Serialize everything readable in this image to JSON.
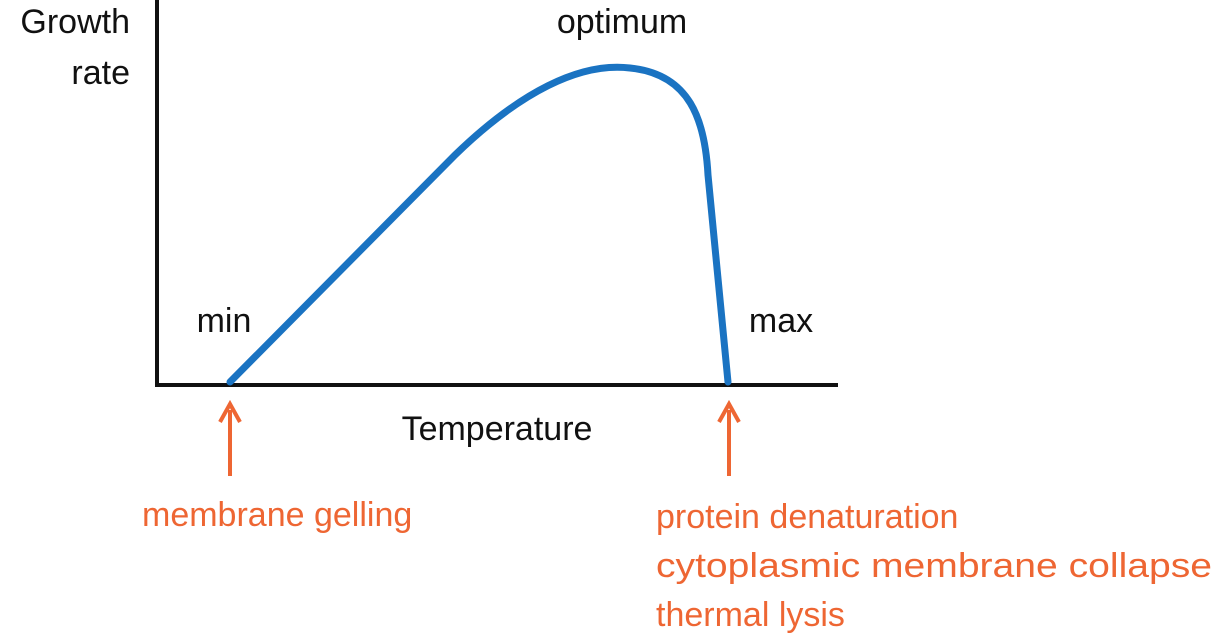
{
  "y_axis_label_line1": "Growth",
  "y_axis_label_line2": "rate",
  "x_axis_label": "Temperature",
  "point_labels": {
    "min": "min",
    "optimum": "optimum",
    "max": "max"
  },
  "min_causes": [
    "membrane gelling"
  ],
  "max_causes": [
    "protein denaturation",
    "cytoplasmic membrane collapse",
    "thermal lysis"
  ],
  "colors": {
    "curve": "#1a73c2",
    "axes": "#111111",
    "annotation": "#ee6633"
  }
}
